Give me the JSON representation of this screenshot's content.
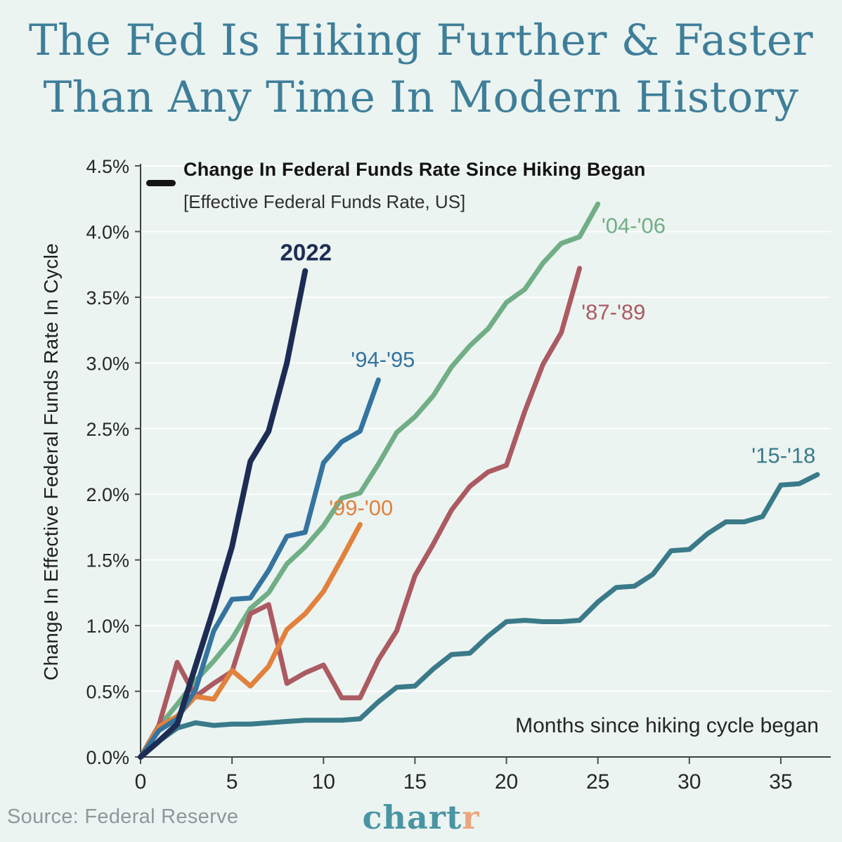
{
  "header": {
    "title_line1": "The Fed Is Hiking Further & Faster",
    "title_line2": "Than Any Time In Modern History",
    "title_color": "#3f7e99"
  },
  "legend": {
    "label": "Change In Federal Funds Rate Since Hiking Began",
    "sublabel": "[Effective Federal Funds Rate, US]",
    "swatch_color": "#141414"
  },
  "footer": {
    "source": "Source: Federal Reserve",
    "logo_part1": "chart",
    "logo_part2": "r",
    "logo_part1_color": "#4b94a4",
    "logo_part2_color": "#eda57f"
  },
  "chart_data": {
    "type": "line",
    "xlabel": "Months since hiking cycle began",
    "ylabel": "Change In Effective Federal Funds Rate In Cycle",
    "xlim": [
      0,
      37.7
    ],
    "ylim": [
      0,
      4.5
    ],
    "xticks": [
      0,
      5,
      10,
      15,
      20,
      25,
      30,
      35
    ],
    "yticks": [
      0,
      0.5,
      1.0,
      1.5,
      2.0,
      2.5,
      3.0,
      3.5,
      4.0,
      4.5
    ],
    "ytick_suffix": "%",
    "grid": "horizontal",
    "legend_position": "top-left",
    "series": [
      {
        "name": "'04-'06",
        "color": "#71ae86",
        "width": 7,
        "label": {
          "month": 25.2,
          "value": 3.99,
          "anchor": "start",
          "size": 31,
          "bold": false
        },
        "values": [
          0,
          0.23,
          0.4,
          0.58,
          0.73,
          0.9,
          1.13,
          1.25,
          1.47,
          1.6,
          1.76,
          1.97,
          2.01,
          2.23,
          2.47,
          2.59,
          2.75,
          2.97,
          3.13,
          3.26,
          3.46,
          3.56,
          3.76,
          3.91,
          3.96,
          4.21
        ]
      },
      {
        "name": "'15-'18",
        "color": "#3a7a89",
        "width": 7,
        "label": {
          "month": 33.4,
          "value": 2.24,
          "anchor": "start",
          "size": 31,
          "bold": false
        },
        "values": [
          0,
          0.12,
          0.22,
          0.26,
          0.24,
          0.25,
          0.25,
          0.26,
          0.27,
          0.28,
          0.28,
          0.28,
          0.29,
          0.42,
          0.53,
          0.54,
          0.67,
          0.78,
          0.79,
          0.92,
          1.03,
          1.04,
          1.03,
          1.03,
          1.04,
          1.18,
          1.29,
          1.3,
          1.39,
          1.57,
          1.58,
          1.7,
          1.79,
          1.79,
          1.83,
          2.07,
          2.08,
          2.15
        ]
      },
      {
        "name": "'87-'89",
        "color": "#ac5a61",
        "width": 7,
        "label": {
          "month": 24.1,
          "value": 3.33,
          "anchor": "start",
          "size": 31,
          "bold": false
        },
        "values": [
          0,
          0.24,
          0.72,
          0.46,
          0.56,
          0.65,
          1.09,
          1.16,
          0.56,
          0.64,
          0.7,
          0.45,
          0.45,
          0.74,
          0.96,
          1.38,
          1.62,
          1.88,
          2.06,
          2.17,
          2.22,
          2.63,
          2.99,
          3.23,
          3.72
        ]
      },
      {
        "name": "'99-'00",
        "color": "#e2813c",
        "width": 7,
        "label": {
          "month": 10.3,
          "value": 1.84,
          "anchor": "start",
          "size": 31,
          "bold": false
        },
        "values": [
          0,
          0.23,
          0.31,
          0.46,
          0.44,
          0.66,
          0.54,
          0.69,
          0.97,
          1.09,
          1.26,
          1.51,
          1.77
        ]
      },
      {
        "name": "'94-'95",
        "color": "#35749f",
        "width": 7,
        "label": {
          "month": 11.5,
          "value": 2.97,
          "anchor": "start",
          "size": 31,
          "bold": false
        },
        "values": [
          0,
          0.2,
          0.29,
          0.51,
          0.96,
          1.2,
          1.21,
          1.42,
          1.68,
          1.71,
          2.24,
          2.4,
          2.48,
          2.87
        ]
      },
      {
        "name": "2022",
        "color": "#1d2c54",
        "width": 8,
        "label": {
          "month": 10.45,
          "value": 3.78,
          "anchor": "end",
          "size": 33,
          "bold": true
        },
        "values": [
          0,
          0.12,
          0.25,
          0.69,
          1.13,
          1.6,
          2.25,
          2.48,
          3.0,
          3.7
        ]
      }
    ]
  }
}
